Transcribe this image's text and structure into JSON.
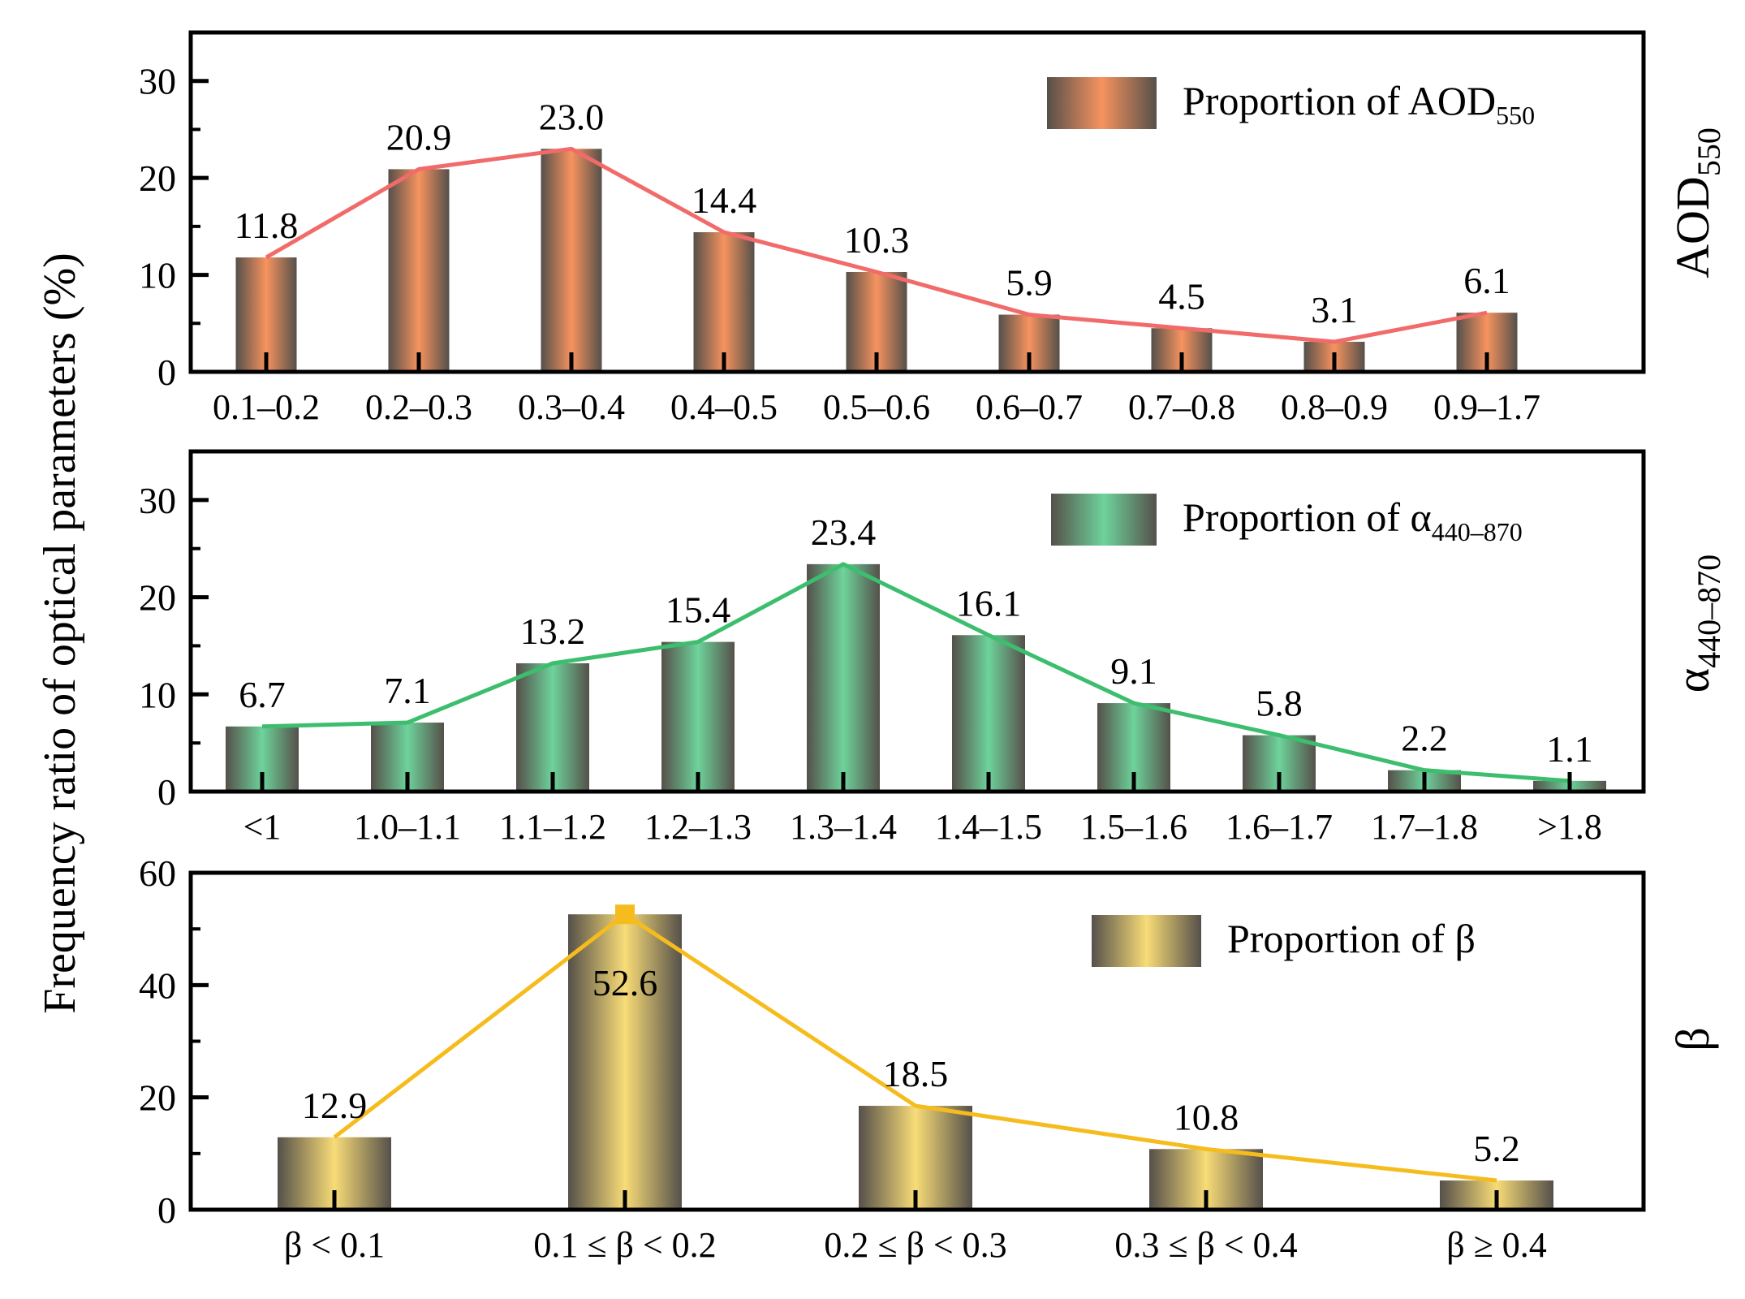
{
  "y_axis_label": "Frequency ratio of optical parameters (%)",
  "chart_data": [
    {
      "type": "bar",
      "id": "aod",
      "side_label": {
        "main": "AOD",
        "sub": "550"
      },
      "legend": {
        "text": "Proportion of AOD",
        "sub": "550"
      },
      "categories": [
        "0.1–0.2",
        "0.2–0.3",
        "0.3–0.4",
        "0.4–0.5",
        "0.5–0.6",
        "0.6–0.7",
        "0.7–0.8",
        "0.8–0.9",
        "0.9–1.7"
      ],
      "values": [
        11.8,
        20.9,
        23.0,
        14.4,
        10.3,
        5.9,
        4.5,
        3.1,
        6.1
      ],
      "value_labels": [
        "11.8",
        "20.9",
        "23.0",
        "14.4",
        "10.3",
        "5.9",
        "4.5",
        "3.1",
        "6.1"
      ],
      "yticks": [
        "0",
        "10",
        "20",
        "30"
      ],
      "ylim": [
        0,
        35
      ],
      "bar_color": "#F7935F",
      "line_color": "#F26B6B"
    },
    {
      "type": "bar",
      "id": "alpha",
      "side_label": {
        "main": "α",
        "sub": "440–870"
      },
      "legend": {
        "text": "Proportion of α",
        "sub": "440–870"
      },
      "categories": [
        "<1",
        "1.0–1.1",
        "1.1–1.2",
        "1.2–1.3",
        "1.3–1.4",
        "1.4–1.5",
        "1.5–1.6",
        "1.6–1.7",
        "1.7–1.8",
        ">1.8"
      ],
      "values": [
        6.7,
        7.1,
        13.2,
        15.4,
        23.4,
        16.1,
        9.1,
        5.8,
        2.2,
        1.1
      ],
      "value_labels": [
        "6.7",
        "7.1",
        "13.2",
        "15.4",
        "23.4",
        "16.1",
        "9.1",
        "5.8",
        "2.2",
        "1.1"
      ],
      "yticks": [
        "0",
        "10",
        "20",
        "30"
      ],
      "ylim": [
        0,
        35
      ],
      "bar_color": "#6ED39B",
      "line_color": "#3DBE6E"
    },
    {
      "type": "bar",
      "id": "beta",
      "side_label": {
        "main": "β",
        "sub": ""
      },
      "legend": {
        "text": "Proportion of β",
        "sub": ""
      },
      "categories": [
        "β < 0.1",
        "0.1 ≤ β < 0.2",
        "0.2 ≤ β < 0.3",
        "0.3 ≤ β < 0.4",
        "β ≥ 0.4"
      ],
      "values": [
        12.9,
        52.6,
        18.5,
        10.8,
        5.2
      ],
      "value_labels": [
        "12.9",
        "52.6",
        "18.5",
        "10.8",
        "5.2"
      ],
      "yticks": [
        "0",
        "20",
        "40",
        "60"
      ],
      "ylim": [
        0,
        60
      ],
      "bar_color": "#F8DC77",
      "line_color": "#F6BC1E"
    }
  ]
}
